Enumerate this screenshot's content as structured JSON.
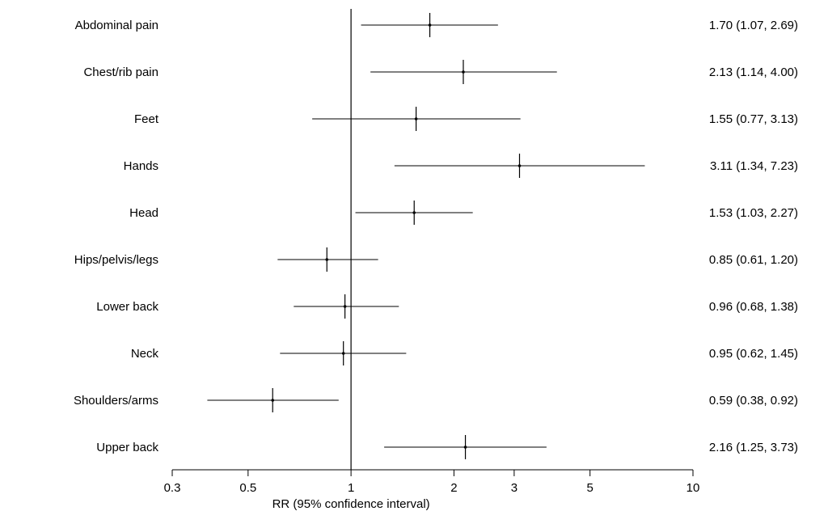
{
  "chart_data": {
    "type": "forest",
    "xlabel": "RR (95% confidence interval)",
    "x_scale": "log",
    "xlim": [
      0.3,
      10
    ],
    "reference_line": 1,
    "ticks": [
      {
        "value": 0.3,
        "label": "0.3"
      },
      {
        "value": 0.5,
        "label": "0.5"
      },
      {
        "value": 1,
        "label": "1"
      },
      {
        "value": 2,
        "label": "2"
      },
      {
        "value": 3,
        "label": "3"
      },
      {
        "value": 5,
        "label": "5"
      },
      {
        "value": 10,
        "label": "10"
      }
    ],
    "rows": [
      {
        "category": "Abdominal pain",
        "rr": 1.7,
        "lower": 1.07,
        "upper": 2.69,
        "label": "1.70 (1.07, 2.69)"
      },
      {
        "category": "Chest/rib pain",
        "rr": 2.13,
        "lower": 1.14,
        "upper": 4.0,
        "label": "2.13 (1.14, 4.00)"
      },
      {
        "category": "Feet",
        "rr": 1.55,
        "lower": 0.77,
        "upper": 3.13,
        "label": "1.55 (0.77, 3.13)"
      },
      {
        "category": "Hands",
        "rr": 3.11,
        "lower": 1.34,
        "upper": 7.23,
        "label": "3.11 (1.34, 7.23)"
      },
      {
        "category": "Head",
        "rr": 1.53,
        "lower": 1.03,
        "upper": 2.27,
        "label": "1.53 (1.03, 2.27)"
      },
      {
        "category": "Hips/pelvis/legs",
        "rr": 0.85,
        "lower": 0.61,
        "upper": 1.2,
        "label": "0.85 (0.61, 1.20)"
      },
      {
        "category": "Lower back",
        "rr": 0.96,
        "lower": 0.68,
        "upper": 1.38,
        "label": "0.96 (0.68, 1.38)"
      },
      {
        "category": "Neck",
        "rr": 0.95,
        "lower": 0.62,
        "upper": 1.45,
        "label": "0.95 (0.62, 1.45)"
      },
      {
        "category": "Shoulders/arms",
        "rr": 0.59,
        "lower": 0.38,
        "upper": 0.92,
        "label": "0.59 (0.38, 0.92)"
      },
      {
        "category": "Upper back",
        "rr": 2.16,
        "lower": 1.25,
        "upper": 3.73,
        "label": "2.16 (1.25, 3.73)"
      }
    ]
  }
}
